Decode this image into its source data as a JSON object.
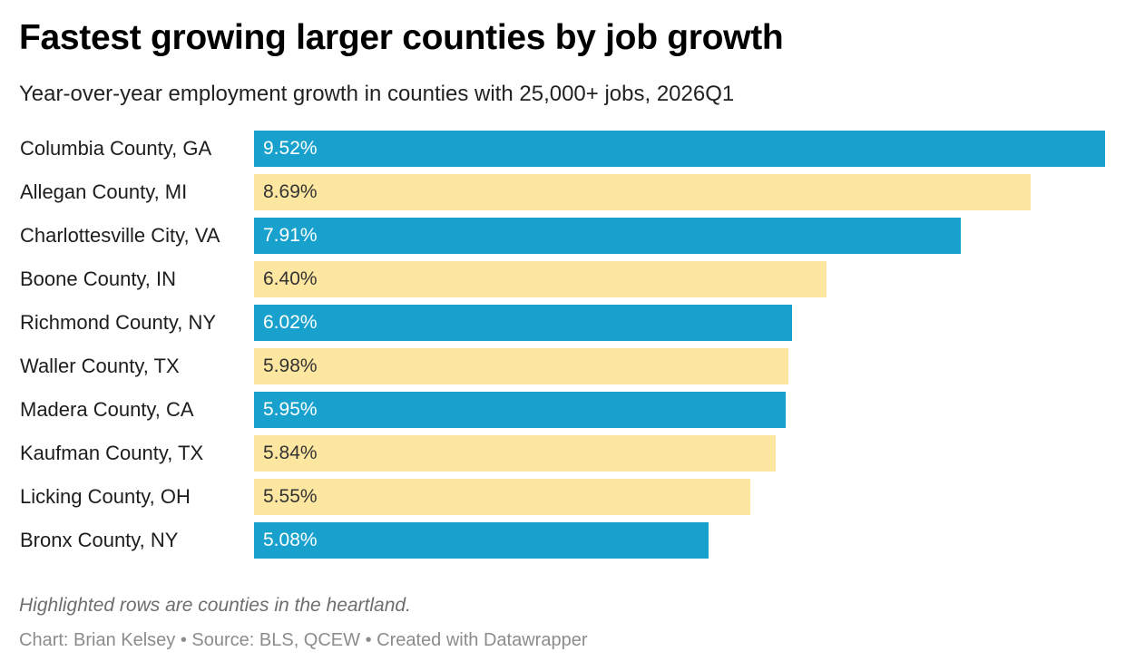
{
  "header": {
    "title": "Fastest growing larger counties by job growth",
    "subtitle": "Year-over-year employment growth in counties with 25,000+ jobs, 2026Q1"
  },
  "colors": {
    "highlight": "#18a1cd",
    "default": "#fde6a0",
    "label_on_highlight": "#ffffff",
    "label_on_default": "#333333"
  },
  "chart_data": {
    "type": "bar",
    "orientation": "horizontal",
    "title": "Fastest growing larger counties by job growth",
    "subtitle": "Year-over-year employment growth in counties with 25,000+ jobs, 2026Q1",
    "categories": [
      "Columbia County, GA",
      "Allegan County, MI",
      "Charlottesville City, VA",
      "Boone County, IN",
      "Richmond County, NY",
      "Waller County, TX",
      "Madera County, CA",
      "Kaufman County, TX",
      "Licking County, OH",
      "Bronx County, NY"
    ],
    "values": [
      9.52,
      8.69,
      7.91,
      6.4,
      6.02,
      5.98,
      5.95,
      5.84,
      5.55,
      5.08
    ],
    "value_labels": [
      "9.52%",
      "8.69%",
      "7.91%",
      "6.40%",
      "6.02%",
      "5.98%",
      "5.95%",
      "5.84%",
      "5.55%",
      "5.08%"
    ],
    "highlighted": [
      true,
      false,
      true,
      false,
      true,
      false,
      true,
      false,
      false,
      true
    ],
    "xlim": [
      0,
      9.52
    ],
    "unit": "%",
    "grid": false,
    "legend": "none"
  },
  "footer": {
    "note": "Highlighted rows are counties in the heartland.",
    "credit": "Chart: Brian Kelsey • Source: BLS, QCEW • Created with Datawrapper"
  }
}
